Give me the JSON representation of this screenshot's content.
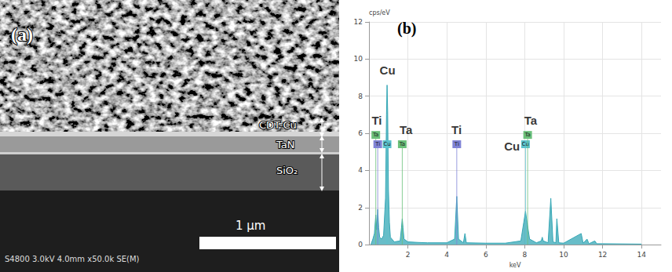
{
  "figure": {
    "panel": "(a)",
    "layers": [
      "CDT-Cu",
      "TaN",
      "SiO₂"
    ],
    "scale_bar": "1 μm",
    "info": "S4800 3.0kV 4.0mm x50.0k SE(M)"
  },
  "chart_data": {
    "type": "line",
    "panel_label": "(b)",
    "y_label": "cps/eV",
    "x_label": "keV",
    "color": "#35a7b5",
    "x": [
      0.1,
      0.2,
      0.28,
      0.35,
      0.4,
      0.45,
      0.5,
      0.55,
      0.65,
      0.75,
      0.85,
      0.9,
      0.93,
      0.96,
      1.0,
      1.05,
      1.1,
      1.3,
      1.6,
      1.67,
      1.71,
      1.75,
      1.8,
      2.0,
      2.5,
      3.0,
      4.0,
      4.4,
      4.51,
      4.6,
      4.85,
      4.93,
      5.0,
      6.0,
      7.0,
      7.8,
      7.95,
      8.04,
      8.12,
      8.25,
      8.6,
      8.85,
      8.9,
      8.95,
      9.2,
      9.34,
      9.45,
      9.6,
      9.65,
      9.75,
      10.0,
      10.9,
      11.0,
      11.2,
      11.3,
      11.6,
      11.7,
      12.0,
      14.0
    ],
    "values": [
      0,
      0.3,
      0.6,
      1.6,
      0.8,
      1.9,
      0.9,
      0.4,
      0.3,
      0.5,
      2.5,
      7.0,
      8.6,
      7.2,
      3.0,
      1.2,
      0.4,
      0.15,
      0.2,
      0.9,
      1.4,
      0.9,
      0.3,
      0.15,
      0.12,
      0.1,
      0.1,
      0.3,
      2.6,
      0.3,
      0.1,
      0.6,
      0.1,
      0.08,
      0.08,
      0.2,
      1.2,
      1.8,
      1.2,
      0.3,
      0.1,
      0.2,
      0.4,
      0.2,
      0.1,
      2.5,
      0.15,
      0.1,
      1.4,
      0.1,
      0.08,
      0.6,
      0.08,
      0.3,
      0.05,
      0.2,
      0.05,
      0.05,
      0.03
    ],
    "xlim": [
      0,
      15
    ],
    "xticks": [
      2,
      4,
      6,
      8,
      10,
      12,
      14
    ],
    "ylim": [
      0,
      12
    ],
    "yticks": [
      0,
      2,
      4,
      6,
      8,
      10,
      12
    ],
    "grid": true,
    "markers": [
      {
        "element": "Ta",
        "keV": 0.35,
        "height": 5.7,
        "color": "#6cc07a"
      },
      {
        "element": "Ti",
        "keV": 0.45,
        "height": 5.2,
        "color": "#7f83d6"
      },
      {
        "element": "Cu",
        "keV": 0.93,
        "height": 5.2,
        "color": "#5cc3cd"
      },
      {
        "element": "Ta",
        "keV": 1.71,
        "height": 5.2,
        "color": "#6cc07a"
      },
      {
        "element": "Ti",
        "keV": 4.51,
        "height": 5.2,
        "color": "#7f83d6"
      },
      {
        "element": "Cu",
        "keV": 8.04,
        "height": 5.2,
        "color": "#5cc3cd"
      },
      {
        "element": "Ta",
        "keV": 8.15,
        "height": 5.7,
        "color": "#6cc07a"
      }
    ],
    "annotations": [
      {
        "text": "Ti",
        "x": 0.4,
        "y": 6.7
      },
      {
        "text": "Cu",
        "x": 0.95,
        "y": 9.4
      },
      {
        "text": "Ta",
        "x": 1.9,
        "y": 6.2
      },
      {
        "text": "Ti",
        "x": 4.5,
        "y": 6.2
      },
      {
        "text": "Cu",
        "x": 7.35,
        "y": 5.3
      },
      {
        "text": "Ta",
        "x": 8.3,
        "y": 6.7
      }
    ]
  }
}
